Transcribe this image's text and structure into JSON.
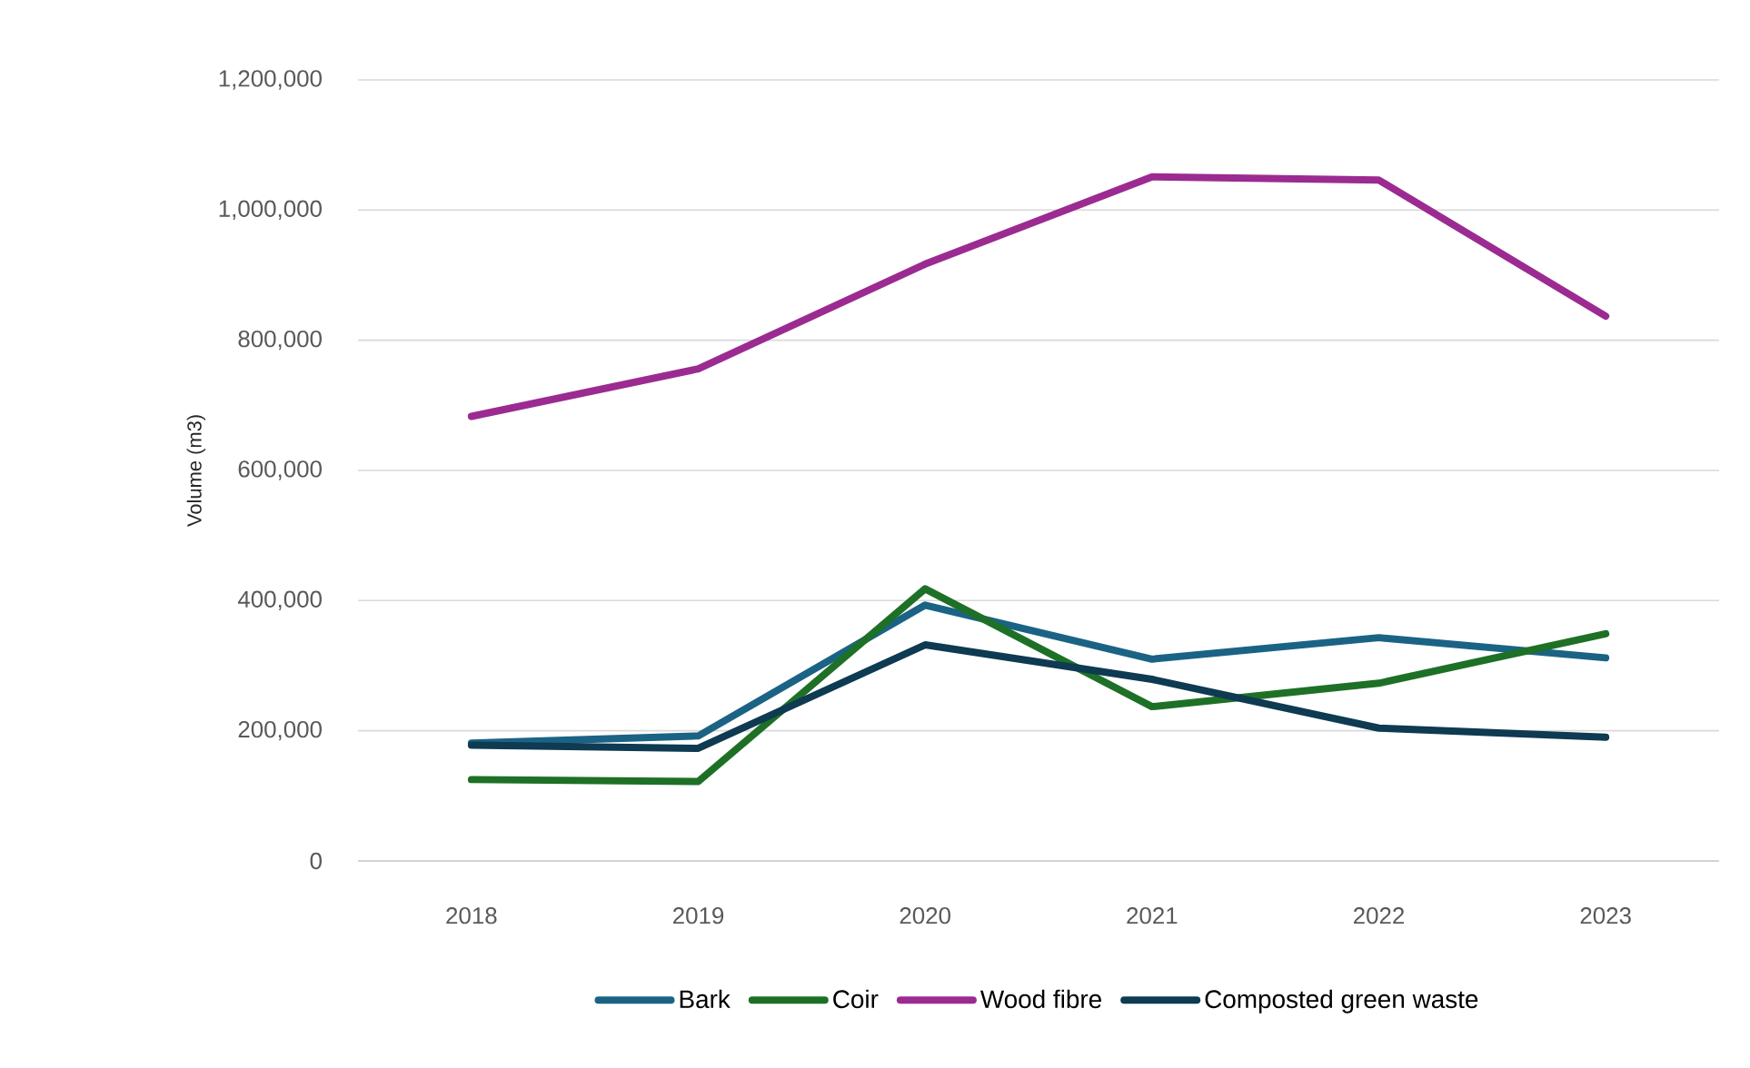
{
  "chart_data": {
    "type": "line",
    "ylabel": "Volume (m3)",
    "categories": [
      "2018",
      "2019",
      "2020",
      "2021",
      "2022",
      "2023"
    ],
    "series": [
      {
        "name": "Bark",
        "color": "#1b6385",
        "values": [
          181000,
          192000,
          393000,
          310000,
          343000,
          312000
        ]
      },
      {
        "name": "Coir",
        "color": "#1e7027",
        "values": [
          125000,
          122000,
          418000,
          237000,
          273000,
          349000
        ]
      },
      {
        "name": "Wood fibre",
        "color": "#9b2b91",
        "values": [
          683000,
          756000,
          917000,
          1051000,
          1046000,
          837000
        ]
      },
      {
        "name": "Composted green waste",
        "color": "#0e3a52",
        "values": [
          178000,
          173000,
          332000,
          279000,
          204000,
          190000
        ]
      }
    ],
    "ylim": [
      0,
      1200000
    ],
    "yticks": [
      0,
      {
        "value": 200000,
        "label": "200,000"
      },
      {
        "value": 400000,
        "label": "400,000"
      },
      {
        "value": 600000,
        "label": "600,000"
      },
      {
        "value": 800000,
        "label": "800,000"
      },
      {
        "value": 1000000,
        "label": "1,000,000"
      },
      {
        "value": 1200000,
        "label": "1,200,000"
      }
    ],
    "grid": "y",
    "legend": "bottom",
    "line_style": "solid"
  }
}
